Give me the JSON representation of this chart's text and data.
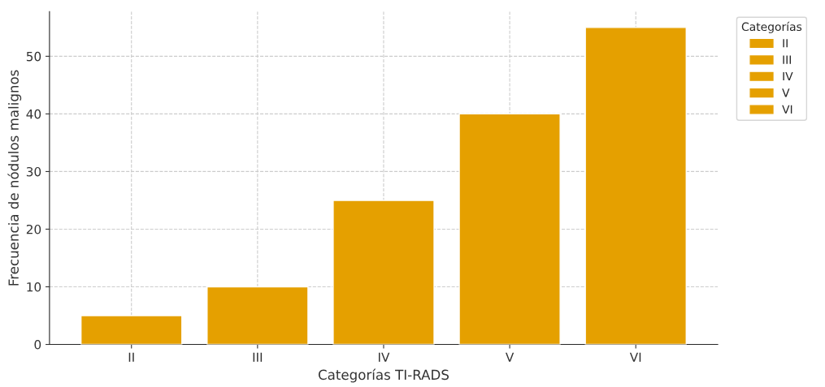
{
  "chart_data": {
    "type": "bar",
    "xlabel": "Categorías TI-RADS",
    "ylabel": "Frecuencia de nódulos malignos",
    "legend_title": "Categorías",
    "categories": [
      "II",
      "III",
      "IV",
      "V",
      "VI"
    ],
    "series": [
      {
        "name": "II",
        "color": "#e5a000",
        "values": [
          5,
          null,
          null,
          null,
          null
        ]
      },
      {
        "name": "III",
        "color": "#e5a000",
        "values": [
          null,
          10,
          null,
          null,
          null
        ]
      },
      {
        "name": "IV",
        "color": "#e5a000",
        "values": [
          null,
          null,
          25,
          null,
          null
        ]
      },
      {
        "name": "V",
        "color": "#e5a000",
        "values": [
          null,
          null,
          null,
          40,
          null
        ]
      },
      {
        "name": "VI",
        "color": "#e5a000",
        "values": [
          null,
          null,
          null,
          null,
          55
        ]
      }
    ],
    "ylim": [
      0,
      57.75
    ],
    "yticks": [
      0,
      10,
      20,
      30,
      40,
      50
    ],
    "grid": true,
    "legend": "top right"
  }
}
